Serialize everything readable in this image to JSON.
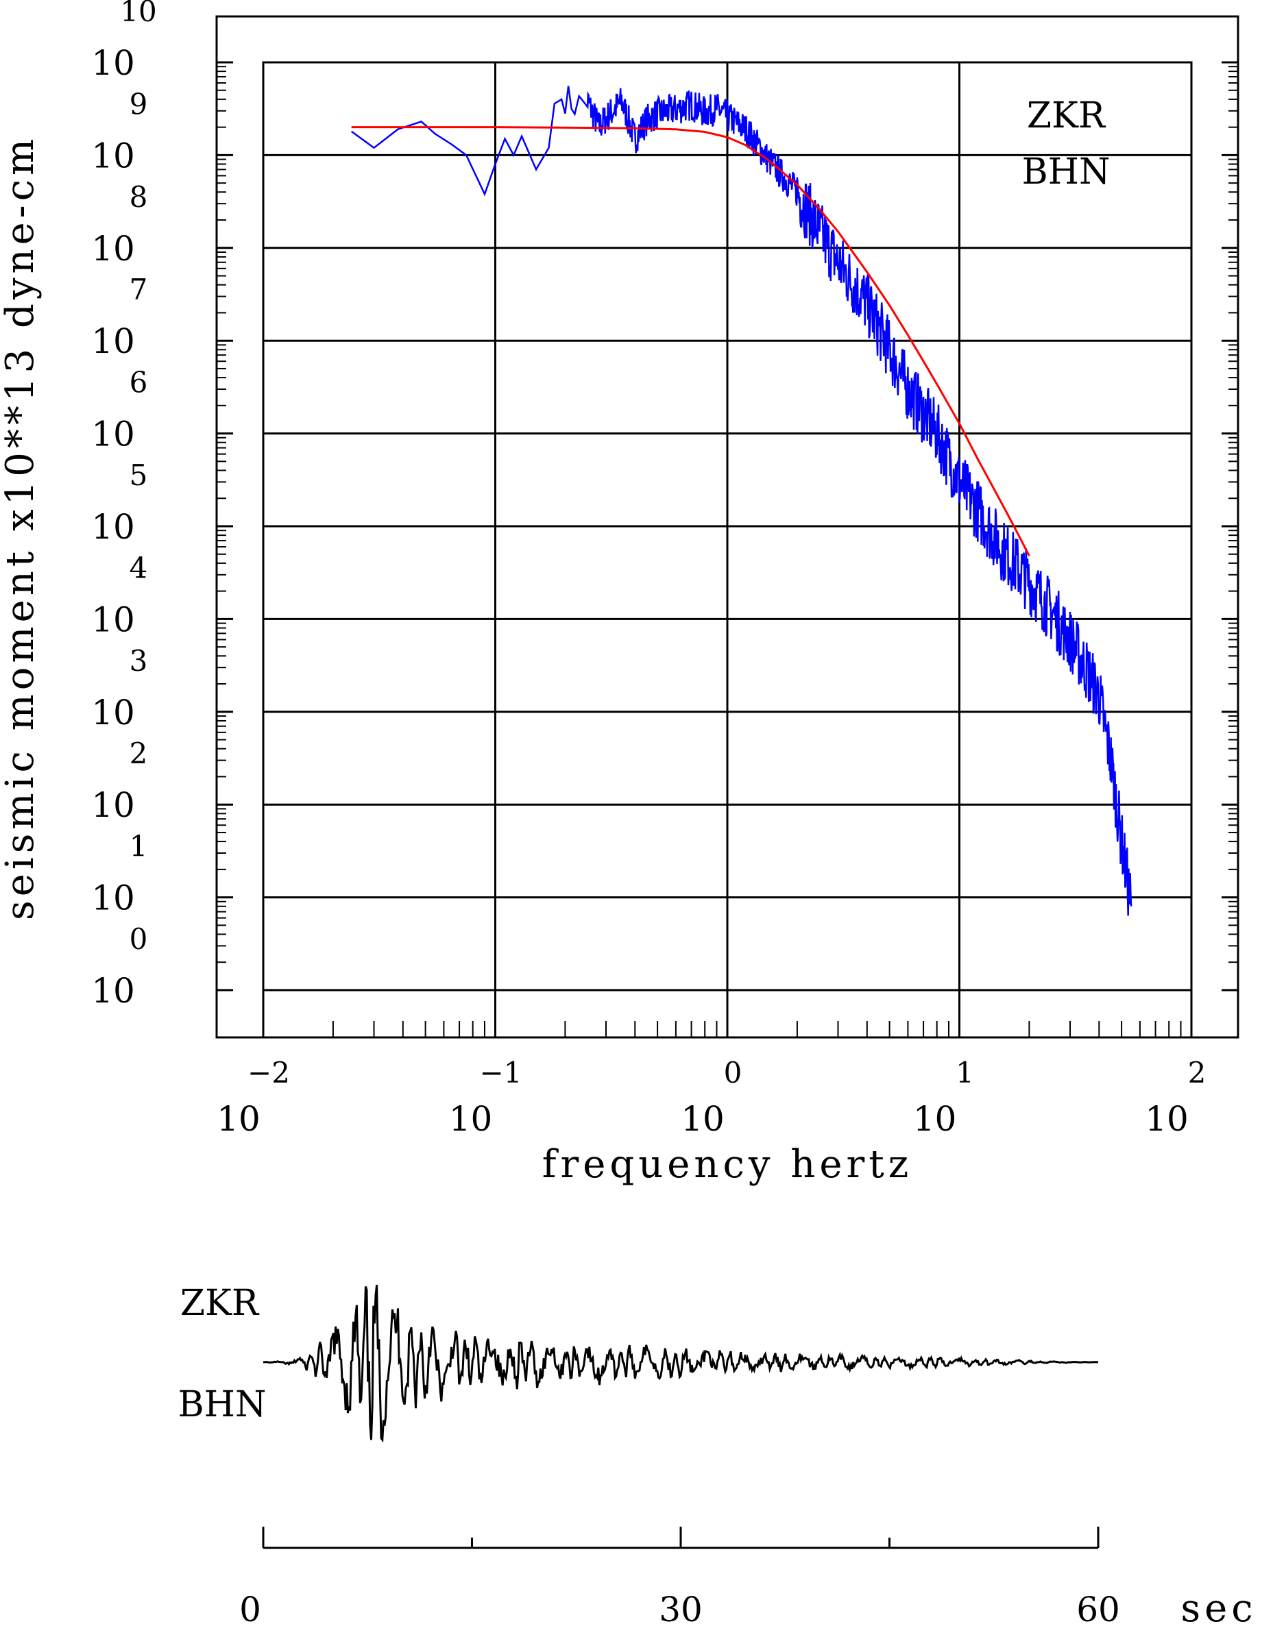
{
  "chart_data": [
    {
      "type": "line",
      "xscale": "log",
      "yscale": "log",
      "xlabel": "frequency  hertz",
      "ylabel": "seismic moment x10**13 dyne-cm",
      "xlim": [
        0.01,
        100
      ],
      "ylim": [
        1,
        10000000000
      ],
      "grid": true,
      "x_ticks": [
        {
          "base": "10",
          "exp": "−2",
          "value": 0.01
        },
        {
          "base": "10",
          "exp": "−1",
          "value": 0.1
        },
        {
          "base": "10",
          "exp": "0",
          "value": 1
        },
        {
          "base": "10",
          "exp": "1",
          "value": 10
        },
        {
          "base": "10",
          "exp": "2",
          "value": 100
        }
      ],
      "y_ticks": [
        {
          "base": "10",
          "exp": "0",
          "value": 1
        },
        {
          "base": "10",
          "exp": "1",
          "value": 10
        },
        {
          "base": "10",
          "exp": "2",
          "value": 100
        },
        {
          "base": "10",
          "exp": "3",
          "value": 1000
        },
        {
          "base": "10",
          "exp": "4",
          "value": 10000
        },
        {
          "base": "10",
          "exp": "5",
          "value": 100000
        },
        {
          "base": "10",
          "exp": "6",
          "value": 1000000
        },
        {
          "base": "10",
          "exp": "7",
          "value": 10000000
        },
        {
          "base": "10",
          "exp": "8",
          "value": 100000000
        },
        {
          "base": "10",
          "exp": "9",
          "value": 1000000000
        },
        {
          "base": "10",
          "exp": "10",
          "value": 10000000000
        }
      ],
      "annotations": [
        "ZKR",
        "BHN"
      ],
      "series": [
        {
          "color": "#0000ff",
          "style": "observed spectrum",
          "x": [
            0.024,
            0.03,
            0.038,
            0.048,
            0.055,
            0.065,
            0.075,
            0.09,
            0.1,
            0.11,
            0.12,
            0.13,
            0.15,
            0.17,
            0.18,
            0.2,
            0.22,
            0.25,
            0.28,
            0.3,
            0.35,
            0.4,
            0.45,
            0.5,
            0.6,
            0.7,
            0.8,
            0.9,
            1.0,
            1.2,
            1.5,
            2.0,
            2.5,
            3.0,
            4.0,
            5.0,
            6.0,
            8.0,
            10,
            12,
            15,
            20,
            25,
            30,
            35,
            40,
            45,
            50,
            55
          ],
          "y": [
            1800000000,
            1200000000,
            1900000000,
            2300000000,
            1700000000,
            1300000000,
            1000000000,
            380000000,
            800000000,
            1500000000,
            1000000000,
            1600000000,
            700000000,
            1200000000,
            3600000000,
            4200000000,
            3500000000,
            3800000000,
            2000000000,
            2500000000,
            3800000000,
            1500000000,
            2400000000,
            2800000000,
            3100000000,
            3500000000,
            2900000000,
            3200000000,
            2600000000,
            1900000000,
            900000000,
            400000000,
            150000000,
            70000000,
            25000000,
            8000000,
            3000000,
            1000000,
            300000,
            150000,
            60000,
            25000,
            12000,
            6000,
            3000,
            1500,
            300,
            40,
            8
          ]
        },
        {
          "color": "#ff0000",
          "style": "model fit",
          "x": [
            0.024,
            0.04,
            0.07,
            0.1,
            0.2,
            0.4,
            0.6,
            0.8,
            1.0,
            1.2,
            1.5,
            2.0,
            2.5,
            3.0,
            4.0,
            5.0,
            6.0,
            7.0,
            8.0,
            10,
            12,
            14,
            16,
            18,
            20
          ],
          "y": [
            2000000000,
            2000000000,
            2000000000,
            2000000000,
            1980000000,
            1950000000,
            1900000000,
            1780000000,
            1560000000,
            1280000000,
            890000000,
            480000000,
            260000000,
            150000000,
            55000000,
            24000000,
            11500000,
            6000000,
            3400000,
            1280000,
            530000,
            260000,
            140000,
            80000,
            48000
          ]
        }
      ]
    },
    {
      "type": "line",
      "xlabel": "sec",
      "xlim": [
        0,
        60
      ],
      "x_ticks": [
        "0",
        "30",
        "60"
      ],
      "annotations": [
        "ZKR",
        "BHN"
      ],
      "series": [
        {
          "color": "#000000",
          "style": "seismogram trace",
          "x": [
            0,
            1,
            2,
            3,
            4,
            5,
            6,
            7,
            8,
            9,
            10,
            11,
            12,
            13,
            14,
            15,
            16,
            17,
            18,
            19,
            20,
            21,
            22,
            23,
            24,
            25,
            26,
            27,
            28,
            29,
            30,
            31,
            32,
            33,
            34,
            35,
            36,
            37,
            38,
            39,
            40,
            41,
            42,
            43,
            44,
            45,
            46,
            47,
            48,
            49,
            50,
            51,
            52,
            53,
            54,
            55,
            56,
            57,
            58,
            59,
            60
          ],
          "y": [
            0,
            0.01,
            0.03,
            0.08,
            0.2,
            0.42,
            0.6,
            0.85,
            1.0,
            0.8,
            0.62,
            0.5,
            0.52,
            0.45,
            0.4,
            0.34,
            0.32,
            0.3,
            0.36,
            0.3,
            0.28,
            0.22,
            0.24,
            0.2,
            0.26,
            0.22,
            0.18,
            0.21,
            0.17,
            0.19,
            0.16,
            0.15,
            0.17,
            0.14,
            0.12,
            0.13,
            0.11,
            0.12,
            0.1,
            0.11,
            0.09,
            0.08,
            0.09,
            0.07,
            0.08,
            0.07,
            0.06,
            0.07,
            0.06,
            0.05,
            0.06,
            0.04,
            0.05,
            0.03,
            0.03,
            0.02,
            0.01,
            0.01,
            0.005,
            0.003,
            0.002
          ]
        }
      ]
    }
  ]
}
